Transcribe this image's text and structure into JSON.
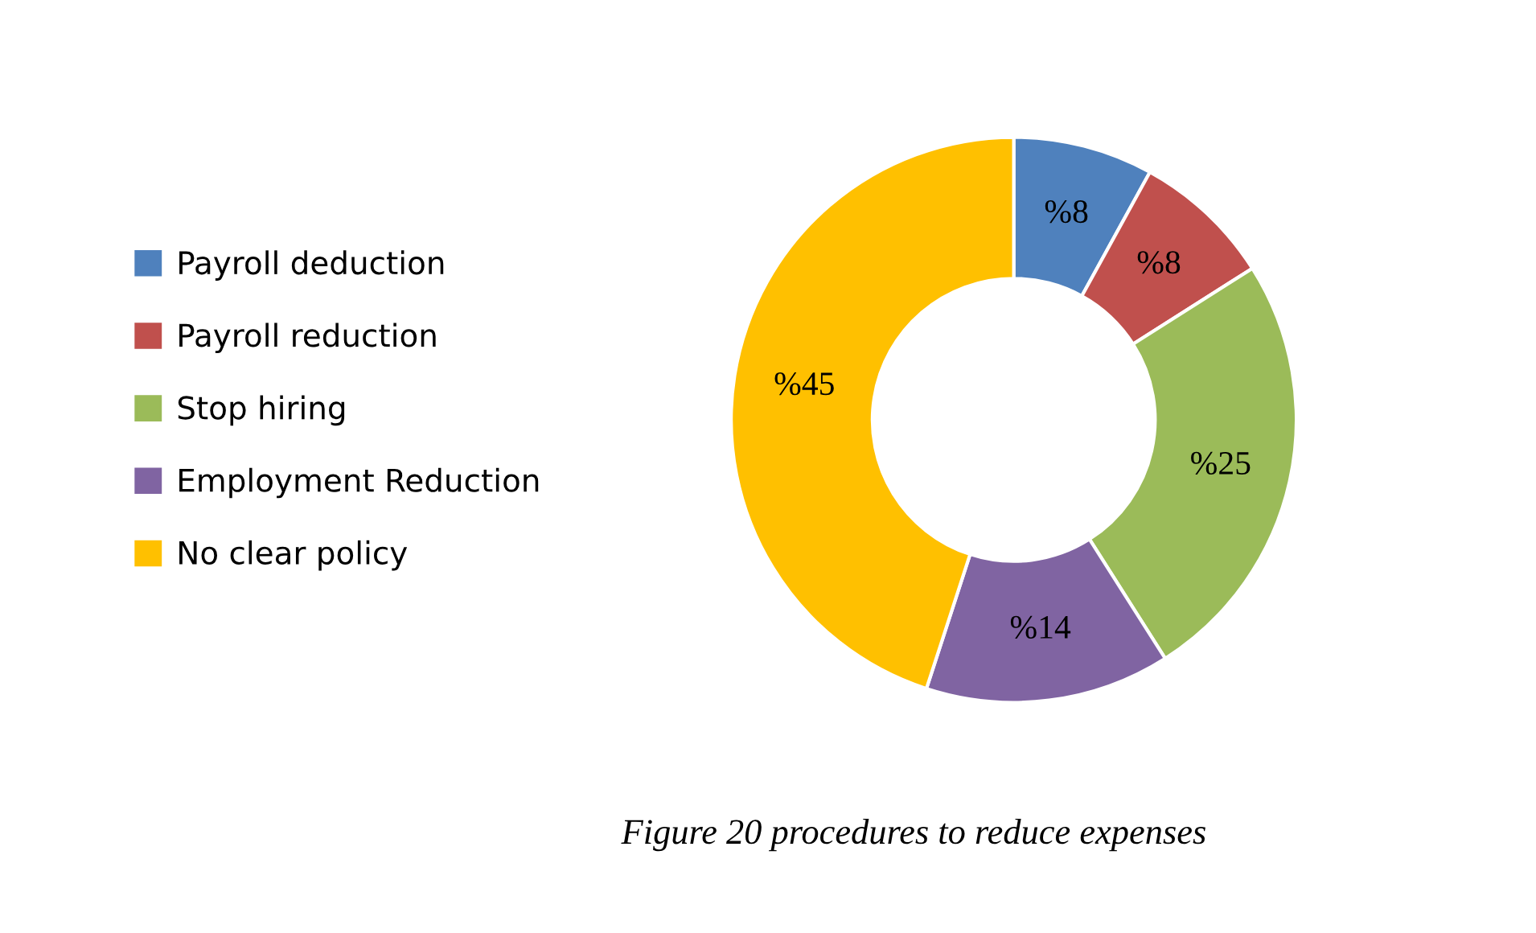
{
  "chart_data": {
    "type": "donut",
    "categories": [
      "Payroll deduction",
      "Payroll reduction",
      "Stop hiring",
      "Employment Reduction",
      "No clear policy"
    ],
    "values": [
      8,
      8,
      25,
      14,
      45
    ],
    "value_labels": [
      "%8",
      "%8",
      "%25",
      "%14",
      "%45"
    ],
    "colors": [
      "#4f81bd",
      "#c0504d",
      "#9bbb59",
      "#8064a2",
      "#ffc000"
    ],
    "legend": "left",
    "annotations": [
      "Figure 20 procedures to reduce expenses"
    ]
  }
}
